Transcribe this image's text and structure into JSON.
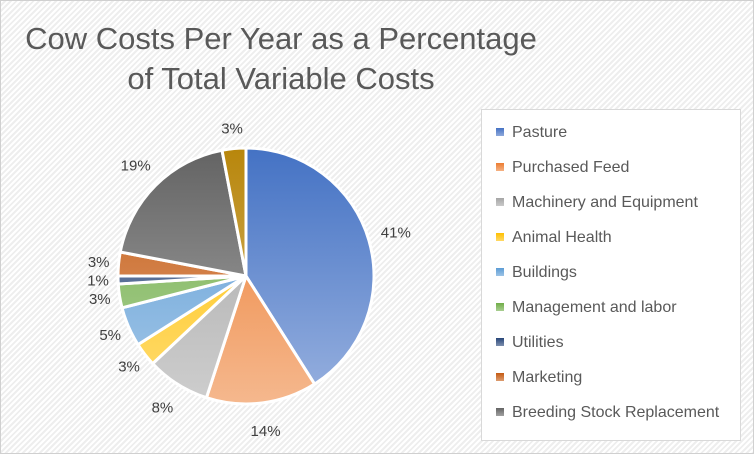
{
  "chart_data": {
    "type": "pie",
    "title": "Cow Costs Per Year as a Percentage of Total Variable Costs",
    "legend_position": "right",
    "slices": [
      {
        "name": "Pasture",
        "value": 41,
        "label": "41%",
        "color": "#4472c4"
      },
      {
        "name": "Purchased Feed",
        "value": 14,
        "label": "14%",
        "color": "#ed7d31"
      },
      {
        "name": "Machinery and Equipment",
        "value": 8,
        "label": "8%",
        "color": "#a5a5a5"
      },
      {
        "name": "Animal Health",
        "value": 3,
        "label": "3%",
        "color": "#ffc000"
      },
      {
        "name": "Buildings",
        "value": 5,
        "label": "5%",
        "color": "#5b9bd5"
      },
      {
        "name": "Management and labor",
        "value": 3,
        "label": "3%",
        "color": "#70ad47"
      },
      {
        "name": "Utilities",
        "value": 1,
        "label": "1%",
        "color": "#264478"
      },
      {
        "name": "Marketing",
        "value": 3,
        "label": "3%",
        "color": "#c55a11"
      },
      {
        "name": "Breeding Stock Replacement",
        "value": 19,
        "label": "19%",
        "color": "#636363"
      },
      {
        "value": 3,
        "label": "3%",
        "color": "#b8860b"
      }
    ]
  }
}
